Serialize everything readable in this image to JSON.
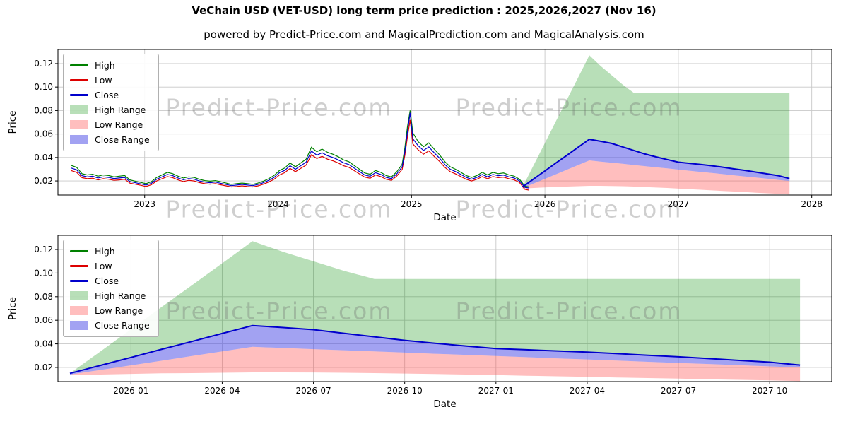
{
  "header": {
    "title": "VeChain USD (VET-USD) long term price prediction : 2025,2026,2027 (Nov 16)",
    "subtitle": "powered by Predict-Price.com and MagicalPrediction.com and MagicalAnalysis.com"
  },
  "watermark_text": "Predict-Price.com",
  "colors": {
    "high_line": "#008000",
    "low_line": "#dd0000",
    "close_line": "#0000cc",
    "high_fill": "rgba(0,140,0,0.28)",
    "low_fill": "rgba(255,70,70,0.35)",
    "close_fill": "rgba(70,70,230,0.5)",
    "grid": "#c8c8c8",
    "spine": "#000000",
    "watermark_color": "rgba(110,110,110,0.33)"
  },
  "legend": [
    {
      "label": "High",
      "swatch": "line",
      "color": "#008000"
    },
    {
      "label": "Low",
      "swatch": "line",
      "color": "#dd0000"
    },
    {
      "label": "Close",
      "swatch": "line",
      "color": "#0000cc"
    },
    {
      "label": "High Range",
      "swatch": "patch",
      "color": "rgba(0,140,0,0.28)"
    },
    {
      "label": "Low Range",
      "swatch": "patch",
      "color": "rgba(255,70,70,0.35)"
    },
    {
      "label": "Close Range",
      "swatch": "patch",
      "color": "rgba(70,70,230,0.5)"
    }
  ],
  "chart_data": [
    {
      "type": "line+area",
      "title": "",
      "xlabel": "Date",
      "ylabel": "Price",
      "xlim": [
        2022.35,
        2028.15
      ],
      "ylim": [
        0.008,
        0.132
      ],
      "grid": true,
      "legend_position": "upper left",
      "xtick_values": [
        2023,
        2024,
        2025,
        2026,
        2027,
        2028
      ],
      "xtick_labels": [
        "2023",
        "2024",
        "2025",
        "2026",
        "2027",
        "2028"
      ],
      "ytick_values": [
        0.02,
        0.04,
        0.06,
        0.08,
        0.1,
        0.12
      ],
      "ytick_labels": [
        "0.02",
        "0.04",
        "0.06",
        "0.08",
        "0.10",
        "0.12"
      ],
      "series_shown": [
        "hist",
        "forecast"
      ],
      "series": {
        "hist": {
          "x": [
            2022.45,
            2022.49,
            2022.53,
            2022.57,
            2022.61,
            2022.65,
            2022.69,
            2022.73,
            2022.77,
            2022.81,
            2022.85,
            2022.89,
            2022.93,
            2022.97,
            2023.01,
            2023.05,
            2023.09,
            2023.13,
            2023.17,
            2023.21,
            2023.25,
            2023.29,
            2023.33,
            2023.37,
            2023.41,
            2023.45,
            2023.49,
            2023.53,
            2023.57,
            2023.61,
            2023.65,
            2023.69,
            2023.73,
            2023.77,
            2023.81,
            2023.85,
            2023.89,
            2023.93,
            2023.97,
            2024.01,
            2024.05,
            2024.09,
            2024.13,
            2024.17,
            2024.21,
            2024.25,
            2024.29,
            2024.33,
            2024.37,
            2024.41,
            2024.45,
            2024.49,
            2024.53,
            2024.57,
            2024.61,
            2024.65,
            2024.69,
            2024.73,
            2024.77,
            2024.81,
            2024.85,
            2024.89,
            2024.93,
            2024.95,
            2024.97,
            2024.99,
            2025.01,
            2025.05,
            2025.09,
            2025.13,
            2025.17,
            2025.21,
            2025.25,
            2025.29,
            2025.33,
            2025.37,
            2025.41,
            2025.45,
            2025.49,
            2025.53,
            2025.57,
            2025.61,
            2025.65,
            2025.69,
            2025.73,
            2025.77,
            2025.81,
            2025.85,
            2025.88
          ],
          "high": [
            0.0332,
            0.0316,
            0.0262,
            0.0251,
            0.0257,
            0.0241,
            0.0251,
            0.0246,
            0.0235,
            0.0241,
            0.0246,
            0.0209,
            0.0198,
            0.0187,
            0.0177,
            0.0193,
            0.023,
            0.0251,
            0.0273,
            0.0262,
            0.0241,
            0.0225,
            0.0235,
            0.023,
            0.0214,
            0.0203,
            0.0198,
            0.0203,
            0.0193,
            0.0182,
            0.0171,
            0.0177,
            0.0182,
            0.0177,
            0.0171,
            0.0182,
            0.0198,
            0.0219,
            0.0246,
            0.0289,
            0.031,
            0.0353,
            0.0321,
            0.0353,
            0.0385,
            0.0487,
            0.0449,
            0.0471,
            0.0444,
            0.0428,
            0.0407,
            0.038,
            0.0364,
            0.0332,
            0.03,
            0.0268,
            0.0257,
            0.0289,
            0.0273,
            0.0246,
            0.0235,
            0.0278,
            0.0342,
            0.0482,
            0.0663,
            0.08,
            0.061,
            0.0535,
            0.0492,
            0.0524,
            0.0471,
            0.0423,
            0.0364,
            0.0321,
            0.03,
            0.0273,
            0.0246,
            0.023,
            0.0246,
            0.0273,
            0.0251,
            0.0273,
            0.0262,
            0.0268,
            0.0251,
            0.0241,
            0.0214,
            0.0155,
            0.015
          ],
          "low": [
            0.0288,
            0.0274,
            0.0228,
            0.0219,
            0.0223,
            0.0209,
            0.0219,
            0.0214,
            0.0205,
            0.0209,
            0.0214,
            0.0181,
            0.0172,
            0.0163,
            0.0153,
            0.0167,
            0.02,
            0.0219,
            0.0237,
            0.0228,
            0.0209,
            0.0195,
            0.0205,
            0.02,
            0.0186,
            0.0177,
            0.0172,
            0.0177,
            0.0167,
            0.0158,
            0.0149,
            0.0153,
            0.0158,
            0.0153,
            0.0149,
            0.0158,
            0.0172,
            0.0191,
            0.0214,
            0.0251,
            0.027,
            0.0307,
            0.0279,
            0.0307,
            0.0335,
            0.0423,
            0.0391,
            0.0409,
            0.0386,
            0.0372,
            0.0353,
            0.033,
            0.0316,
            0.0288,
            0.026,
            0.0232,
            0.0223,
            0.0251,
            0.0237,
            0.0214,
            0.0205,
            0.0242,
            0.0298,
            0.0418,
            0.0577,
            0.072,
            0.0515,
            0.0465,
            0.0428,
            0.0456,
            0.0409,
            0.0367,
            0.0316,
            0.0279,
            0.026,
            0.0237,
            0.0214,
            0.02,
            0.0214,
            0.0237,
            0.0219,
            0.0237,
            0.0228,
            0.0232,
            0.0219,
            0.0209,
            0.0186,
            0.0128,
            0.0122
          ],
          "close": [
            0.031,
            0.0295,
            0.0245,
            0.0235,
            0.024,
            0.0225,
            0.0235,
            0.023,
            0.022,
            0.0225,
            0.023,
            0.0195,
            0.0185,
            0.0175,
            0.0165,
            0.018,
            0.0215,
            0.0235,
            0.0255,
            0.0245,
            0.0225,
            0.021,
            0.022,
            0.0215,
            0.02,
            0.019,
            0.0185,
            0.019,
            0.018,
            0.017,
            0.016,
            0.0165,
            0.017,
            0.0165,
            0.016,
            0.017,
            0.0185,
            0.0205,
            0.023,
            0.027,
            0.029,
            0.033,
            0.03,
            0.033,
            0.036,
            0.0455,
            0.042,
            0.044,
            0.0415,
            0.04,
            0.038,
            0.0355,
            0.034,
            0.031,
            0.028,
            0.025,
            0.024,
            0.027,
            0.0255,
            0.023,
            0.022,
            0.026,
            0.032,
            0.045,
            0.062,
            0.078,
            0.056,
            0.05,
            0.046,
            0.049,
            0.044,
            0.0395,
            0.034,
            0.03,
            0.028,
            0.0255,
            0.023,
            0.0215,
            0.023,
            0.0255,
            0.0235,
            0.0255,
            0.0245,
            0.025,
            0.0235,
            0.0225,
            0.02,
            0.0145,
            0.014
          ]
        },
        "forecast": {
          "x": [
            2025.833,
            2025.917,
            2026.0,
            2026.083,
            2026.167,
            2026.25,
            2026.333,
            2026.417,
            2026.5,
            2026.583,
            2026.667,
            2026.75,
            2026.833,
            2026.917,
            2027.0,
            2027.083,
            2027.167,
            2027.25,
            2027.333,
            2027.417,
            2027.5,
            2027.583,
            2027.667,
            2027.75,
            2027.833
          ],
          "high": [
            0.015,
            0.0337,
            0.0523,
            0.071,
            0.0897,
            0.1083,
            0.127,
            0.118,
            0.11,
            0.102,
            0.095,
            0.095,
            0.095,
            0.095,
            0.095,
            0.095,
            0.095,
            0.095,
            0.095,
            0.095,
            0.095,
            0.095,
            0.095,
            0.095,
            0.095
          ],
          "close": [
            0.015,
            0.0218,
            0.0285,
            0.0353,
            0.042,
            0.0488,
            0.0555,
            0.0538,
            0.052,
            0.049,
            0.046,
            0.043,
            0.0405,
            0.0382,
            0.036,
            0.035,
            0.034,
            0.033,
            0.0317,
            0.0303,
            0.029,
            0.0275,
            0.026,
            0.0245,
            0.022
          ],
          "low": [
            0.014,
            0.0179,
            0.0218,
            0.0257,
            0.0297,
            0.0336,
            0.0375,
            0.0365,
            0.0355,
            0.0346,
            0.0336,
            0.0326,
            0.0316,
            0.0307,
            0.0297,
            0.0287,
            0.0277,
            0.0268,
            0.0258,
            0.0248,
            0.0238,
            0.0229,
            0.0219,
            0.0209,
            0.02
          ],
          "low_lower": [
            0.0135,
            0.014,
            0.0145,
            0.015,
            0.0152,
            0.0155,
            0.0158,
            0.0158,
            0.0157,
            0.0155,
            0.0152,
            0.0148,
            0.0144,
            0.014,
            0.0135,
            0.013,
            0.0125,
            0.012,
            0.0115,
            0.011,
            0.0105,
            0.01,
            0.0095,
            0.009,
            0.0085
          ]
        }
      }
    },
    {
      "type": "line+area",
      "title": "",
      "xlabel": "Date",
      "ylabel": "Price",
      "xlim": [
        2025.8,
        2027.92
      ],
      "ylim": [
        0.008,
        0.132
      ],
      "grid": true,
      "legend_position": "upper left",
      "xtick_values": [
        2026.0,
        2026.25,
        2026.5,
        2026.75,
        2027.0,
        2027.25,
        2027.5,
        2027.75
      ],
      "xtick_labels": [
        "2026-01",
        "2026-04",
        "2026-07",
        "2026-10",
        "2027-01",
        "2027-04",
        "2027-07",
        "2027-10"
      ],
      "ytick_values": [
        0.02,
        0.04,
        0.06,
        0.08,
        0.1,
        0.12
      ],
      "ytick_labels": [
        "0.02",
        "0.04",
        "0.06",
        "0.08",
        "0.10",
        "0.12"
      ],
      "series_shown": [
        "forecast"
      ],
      "uses_series_from_chart": 0
    }
  ]
}
